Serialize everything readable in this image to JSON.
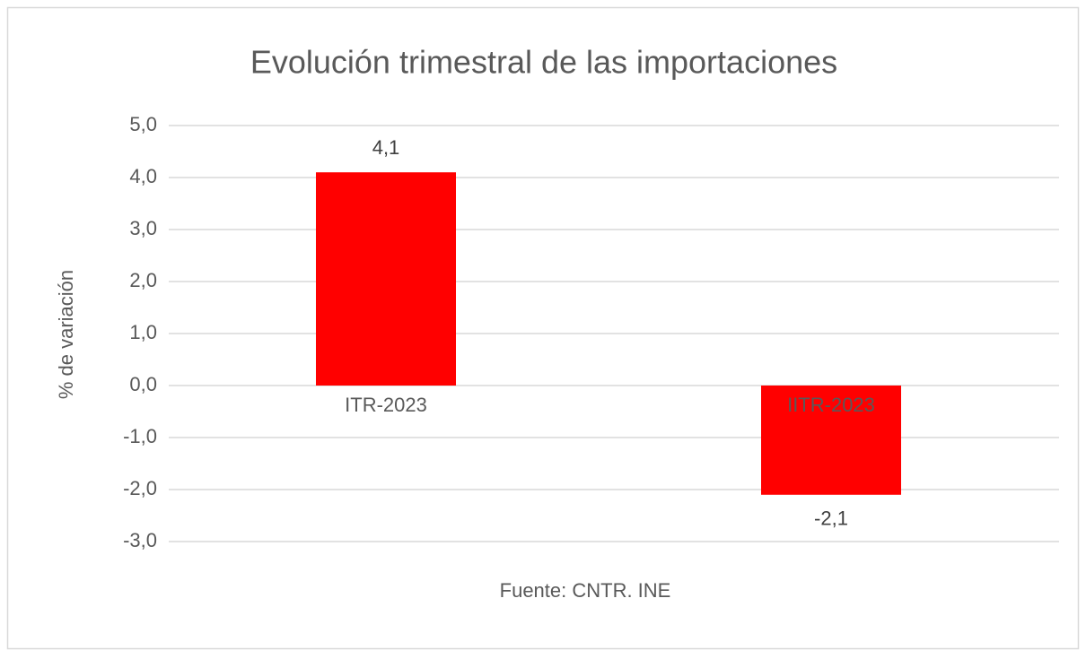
{
  "chart_data": {
    "type": "bar",
    "title": "Evolución trimestral de las importaciones",
    "y_label": "% de variación",
    "source": "Fuente: CNTR. INE",
    "categories": [
      "ITR-2023",
      "IITR-2023"
    ],
    "values": [
      4.1,
      -2.1
    ],
    "value_labels": [
      "4,1",
      "-2,1"
    ],
    "color": "#ff0000",
    "ylim": [
      -3,
      5
    ],
    "yticks": [
      {
        "value": 5,
        "label": "5,0"
      },
      {
        "value": 4,
        "label": "4,0"
      },
      {
        "value": 3,
        "label": "3,0"
      },
      {
        "value": 2,
        "label": "2,0"
      },
      {
        "value": 1,
        "label": "1,0"
      },
      {
        "value": 0,
        "label": "0,0"
      },
      {
        "value": -1,
        "label": "-1,0"
      },
      {
        "value": -2,
        "label": "-2,0"
      },
      {
        "value": -3,
        "label": "-3,0"
      }
    ],
    "grid": true
  }
}
